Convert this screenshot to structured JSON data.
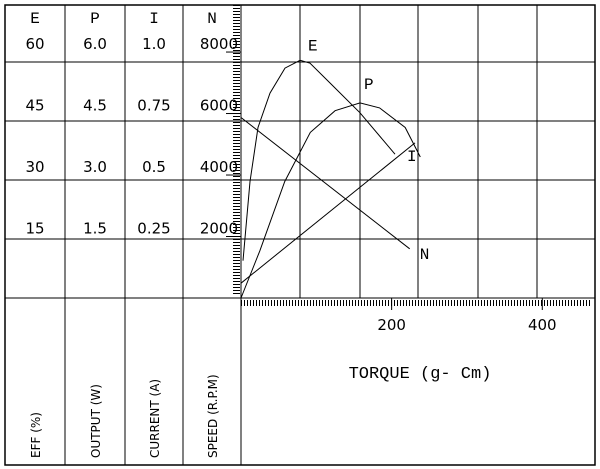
{
  "chart_data": {
    "type": "line",
    "xlabel": "TORQUE (g- Cm)",
    "xlim": [
      0,
      470
    ],
    "xticks": [
      200,
      400
    ],
    "y_axes": [
      {
        "name": "E",
        "label": "EFF (%)",
        "ylim": [
          0,
          71.5
        ],
        "yticks": [
          15,
          30,
          45,
          60
        ]
      },
      {
        "name": "P",
        "label": "OUTPUT (W)",
        "ylim": [
          0,
          7.15
        ],
        "yticks": [
          {
            "value": 1.5,
            "label": "1.5"
          },
          {
            "value": 3,
            "label": "3.0"
          },
          {
            "value": 4.5,
            "label": "4.5"
          },
          {
            "value": 6,
            "label": "6.0"
          }
        ]
      },
      {
        "name": "I",
        "label": "CURRENT (A)",
        "ylim": [
          0,
          1.19
        ],
        "yticks": [
          0.25,
          0.5,
          0.75,
          {
            "value": 1,
            "label": "1.0"
          }
        ]
      },
      {
        "name": "N",
        "label": "SPEED (R.P.M)",
        "ylim": [
          0,
          9530
        ],
        "yticks": [
          2000,
          4000,
          6000,
          8000
        ]
      }
    ],
    "series": [
      {
        "name": "E",
        "axis": "E",
        "color": "#000000",
        "x": [
          2.7,
          12,
          22.6,
          38.5,
          58.4,
          78.4,
          91.6,
          118,
          158,
          204.5
        ],
        "values": [
          9.1,
          28.4,
          41.6,
          50.0,
          56.1,
          58.0,
          57.3,
          52.5,
          45.2,
          35.1
        ]
      },
      {
        "name": "P",
        "axis": "P",
        "color": "#000000",
        "x": [
          0,
          25,
          58,
          92,
          125,
          158,
          184,
          218,
          238
        ],
        "values": [
          0,
          1.15,
          2.84,
          4.04,
          4.57,
          4.76,
          4.64,
          4.16,
          3.44
        ]
      },
      {
        "name": "I",
        "axis": "I",
        "color": "#000000",
        "x": [
          0,
          231
        ],
        "values": [
          0.06,
          0.63
        ]
      },
      {
        "name": "N",
        "axis": "N",
        "color": "#000000",
        "x": [
          0,
          224
        ],
        "values": [
          5870,
          1600
        ]
      }
    ]
  }
}
